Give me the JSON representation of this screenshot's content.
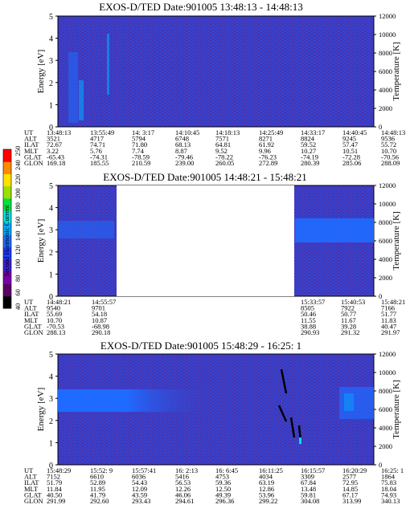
{
  "chart_data": [
    {
      "type": "heatmap",
      "title": "EXOS-D/TED   Date:901005  13:48:13 - 14:48:13",
      "ylabel": "Energy [eV]",
      "y2label": "Temperature [K]",
      "ylim": [
        0,
        5
      ],
      "y2lim": [
        0,
        12000
      ],
      "yticks": [
        "0",
        "1",
        "2",
        "3",
        "4",
        "5"
      ],
      "y2ticks": [
        "0",
        "2000",
        "4000",
        "6000",
        "8000",
        "10000",
        "12000"
      ],
      "data_gaps": [],
      "ephemeris": {
        "labels": [
          "UT",
          "ALT",
          "ILAT",
          "MLT",
          "GLAT",
          "GLON"
        ],
        "columns": [
          [
            "13:48:13",
            "3521",
            "72.67",
            "3.22",
            "-65.43",
            "169.18"
          ],
          [
            "13:55:49",
            "4717",
            "74.71",
            "5.76",
            "-74.31",
            "185.55"
          ],
          [
            "14: 3:17",
            "5794",
            "71.80",
            "7.74",
            "-78.59",
            "210.59"
          ],
          [
            "14:10:45",
            "6748",
            "68.13",
            "8.87",
            "-79.46",
            "239.00"
          ],
          [
            "14:18:13",
            "7571",
            "64.81",
            "9.52",
            "-78.22",
            "260.05"
          ],
          [
            "14:25:49",
            "8271",
            "61.92",
            "9.96",
            "-76.23",
            "272.89"
          ],
          [
            "14:33:17",
            "8824",
            "59.52",
            "10.27",
            "-74.19",
            "280.39"
          ],
          [
            "14:40:45",
            "9245",
            "57.47",
            "10.51",
            "-72.28",
            "285.06"
          ],
          [
            "14:48:13",
            "9536",
            "55.72",
            "10.70",
            "-70.56",
            "288.09"
          ]
        ]
      }
    },
    {
      "type": "heatmap",
      "title": "EXOS-D/TED   Date:901005  14:48:21 - 15:48:21",
      "ylabel": "Energy [eV]",
      "y2label": "Temperature [K]",
      "ylim": [
        0,
        5
      ],
      "y2lim": [
        0,
        12000
      ],
      "yticks": [
        "0",
        "1",
        "2",
        "3",
        "4",
        "5"
      ],
      "y2ticks": [
        "0",
        "2000",
        "4000",
        "6000",
        "8000",
        "10000",
        "12000"
      ],
      "data_gaps": [
        [
          0.12,
          0.79
        ]
      ],
      "ephemeris": {
        "labels": [
          "UT",
          "ALT",
          "ILAT",
          "MLT",
          "GLAT",
          "GLON"
        ],
        "columns": [
          [
            "14:48:21",
            "9540",
            "55.69",
            "10.70",
            "-70.53",
            "288.13"
          ],
          [
            "14:55:57",
            "9701",
            "54.18",
            "10.87",
            "-68.98",
            "290.18"
          ],
          [
            "15:33:57",
            "8505",
            "50.46",
            "11.55",
            "38.88",
            "290.93"
          ],
          [
            "15:40:53",
            "7922",
            "50.77",
            "11.67",
            "39.28",
            "291.32"
          ],
          [
            "15:48:21",
            "7166",
            "51.77",
            "11.83",
            "40.47",
            "291.97"
          ]
        ]
      }
    },
    {
      "type": "heatmap",
      "title": "EXOS-D/TED   Date:901005  15:48:29 - 16:25: 1",
      "ylabel": "Energy [eV]",
      "y2label": "Temperature [K]",
      "ylim": [
        0,
        5
      ],
      "y2lim": [
        0,
        12000
      ],
      "yticks": [
        "0",
        "1",
        "2",
        "3",
        "4",
        "5"
      ],
      "y2ticks": [
        "0",
        "2000",
        "4000",
        "6000",
        "8000",
        "10000",
        "12000"
      ],
      "data_gaps": [],
      "ephemeris": {
        "labels": [
          "UT",
          "ALT",
          "ILAT",
          "MLT",
          "GLAT",
          "GLON"
        ],
        "columns": [
          [
            "15:48:29",
            "7152",
            "51.79",
            "11.84",
            "40.50",
            "291.99"
          ],
          [
            "15:52: 9",
            "6610",
            "52.89",
            "11.95",
            "41.79",
            "292.60"
          ],
          [
            "15:57:41",
            "6036",
            "54.43",
            "12.09",
            "43.59",
            "293.43"
          ],
          [
            "16: 2:13",
            "5416",
            "56.53",
            "12.26",
            "46.06",
            "294.61"
          ],
          [
            "16: 6:45",
            "4753",
            "59.36",
            "12.50",
            "49.39",
            "296.36"
          ],
          [
            "16:11:25",
            "4034",
            "63.19",
            "12.86",
            "53.96",
            "299.22"
          ],
          [
            "16:15:57",
            "3309",
            "67.84",
            "13.48",
            "59.81",
            "304.08"
          ],
          [
            "16:20:29",
            "2577",
            "72.95",
            "14.85",
            "67.17",
            "313.99"
          ],
          [
            "16:25: 1",
            "1864",
            "75.83",
            "18.04",
            "74.93",
            "340.13"
          ]
        ]
      }
    }
  ],
  "colorbar": {
    "label": "Second Harmonic Current",
    "ticks": [
      "40",
      "60",
      "80",
      "100",
      "120",
      "140",
      "160",
      "180",
      "200",
      "220",
      "240",
      "250"
    ],
    "colors": [
      "#000000",
      "#5a0066",
      "#7a00a8",
      "#3b1fd6",
      "#1f3bff",
      "#1f6bff",
      "#00a8ff",
      "#00e0e0",
      "#00e040",
      "#9be000",
      "#ffe000",
      "#ff8a00",
      "#ff0000"
    ]
  }
}
